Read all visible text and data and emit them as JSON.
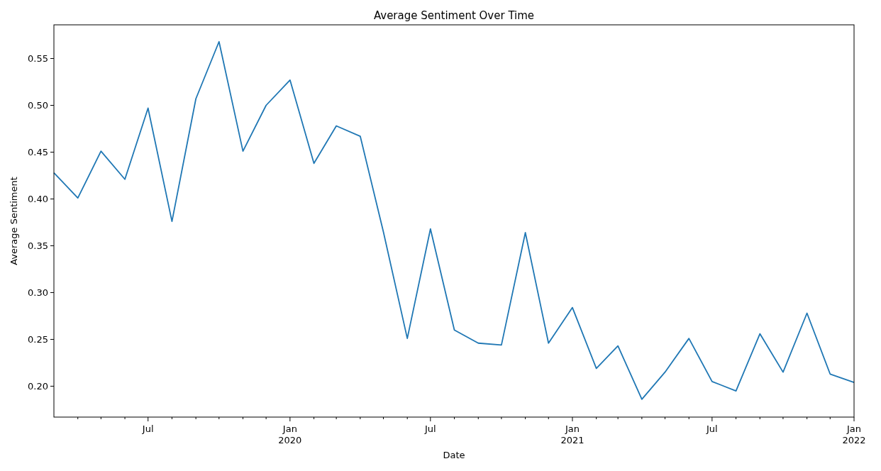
{
  "chart_data": {
    "type": "line",
    "title": "Average Sentiment Over Time",
    "xlabel": "Date",
    "ylabel": "Average Sentiment",
    "x": [
      "2019-03",
      "2019-04",
      "2019-05",
      "2019-06",
      "2019-07",
      "2019-08",
      "2019-09",
      "2019-10",
      "2019-11",
      "2019-12",
      "2020-01",
      "2020-02",
      "2020-03",
      "2020-04",
      "2020-05",
      "2020-06",
      "2020-07",
      "2020-08",
      "2020-09",
      "2020-10",
      "2020-11",
      "2020-12",
      "2021-01",
      "2021-02",
      "2021-03",
      "2021-04",
      "2021-05",
      "2021-06",
      "2021-07",
      "2021-08",
      "2021-09",
      "2021-10",
      "2021-11",
      "2021-12",
      "2022-01"
    ],
    "series": [
      {
        "color": "#1f77b4",
        "values": [
          0.428,
          0.401,
          0.451,
          0.421,
          0.497,
          0.376,
          0.507,
          0.568,
          0.451,
          0.5,
          0.527,
          0.438,
          0.478,
          0.467,
          0.365,
          0.251,
          0.368,
          0.26,
          0.246,
          0.244,
          0.364,
          0.246,
          0.284,
          0.219,
          0.243,
          0.186,
          0.215,
          0.251,
          0.205,
          0.195,
          0.256,
          0.215,
          0.278,
          0.213,
          0.204
        ]
      }
    ],
    "xlim": [
      "2019-03",
      "2022-01"
    ],
    "xticks": [
      {
        "value": "2019-04",
        "label": null
      },
      {
        "value": "2019-05",
        "label": null
      },
      {
        "value": "2019-06",
        "label": null
      },
      {
        "value": "2019-07",
        "label": "Jul"
      },
      {
        "value": "2019-08",
        "label": null
      },
      {
        "value": "2019-09",
        "label": null
      },
      {
        "value": "2019-10",
        "label": null
      },
      {
        "value": "2019-11",
        "label": null
      },
      {
        "value": "2019-12",
        "label": null
      },
      {
        "value": "2020-01",
        "label": "Jan\n2020"
      },
      {
        "value": "2020-02",
        "label": null
      },
      {
        "value": "2020-03",
        "label": null
      },
      {
        "value": "2020-04",
        "label": null
      },
      {
        "value": "2020-05",
        "label": null
      },
      {
        "value": "2020-06",
        "label": null
      },
      {
        "value": "2020-07",
        "label": "Jul"
      },
      {
        "value": "2020-08",
        "label": null
      },
      {
        "value": "2020-09",
        "label": null
      },
      {
        "value": "2020-10",
        "label": null
      },
      {
        "value": "2020-11",
        "label": null
      },
      {
        "value": "2020-12",
        "label": null
      },
      {
        "value": "2021-01",
        "label": "Jan\n2021"
      },
      {
        "value": "2021-02",
        "label": null
      },
      {
        "value": "2021-03",
        "label": null
      },
      {
        "value": "2021-04",
        "label": null
      },
      {
        "value": "2021-05",
        "label": null
      },
      {
        "value": "2021-06",
        "label": null
      },
      {
        "value": "2021-07",
        "label": "Jul"
      },
      {
        "value": "2021-08",
        "label": null
      },
      {
        "value": "2021-09",
        "label": null
      },
      {
        "value": "2021-10",
        "label": null
      },
      {
        "value": "2021-11",
        "label": null
      },
      {
        "value": "2021-12",
        "label": null
      },
      {
        "value": "2022-01",
        "label": "Jan\n2022"
      }
    ],
    "ylim": [
      0.167,
      0.586
    ],
    "yticks": [
      {
        "value": 0.2,
        "label": "0.20"
      },
      {
        "value": 0.25,
        "label": "0.25"
      },
      {
        "value": 0.3,
        "label": "0.30"
      },
      {
        "value": 0.35,
        "label": "0.35"
      },
      {
        "value": 0.4,
        "label": "0.40"
      },
      {
        "value": 0.45,
        "label": "0.45"
      },
      {
        "value": 0.5,
        "label": "0.50"
      },
      {
        "value": 0.55,
        "label": "0.55"
      }
    ],
    "grid": false
  }
}
